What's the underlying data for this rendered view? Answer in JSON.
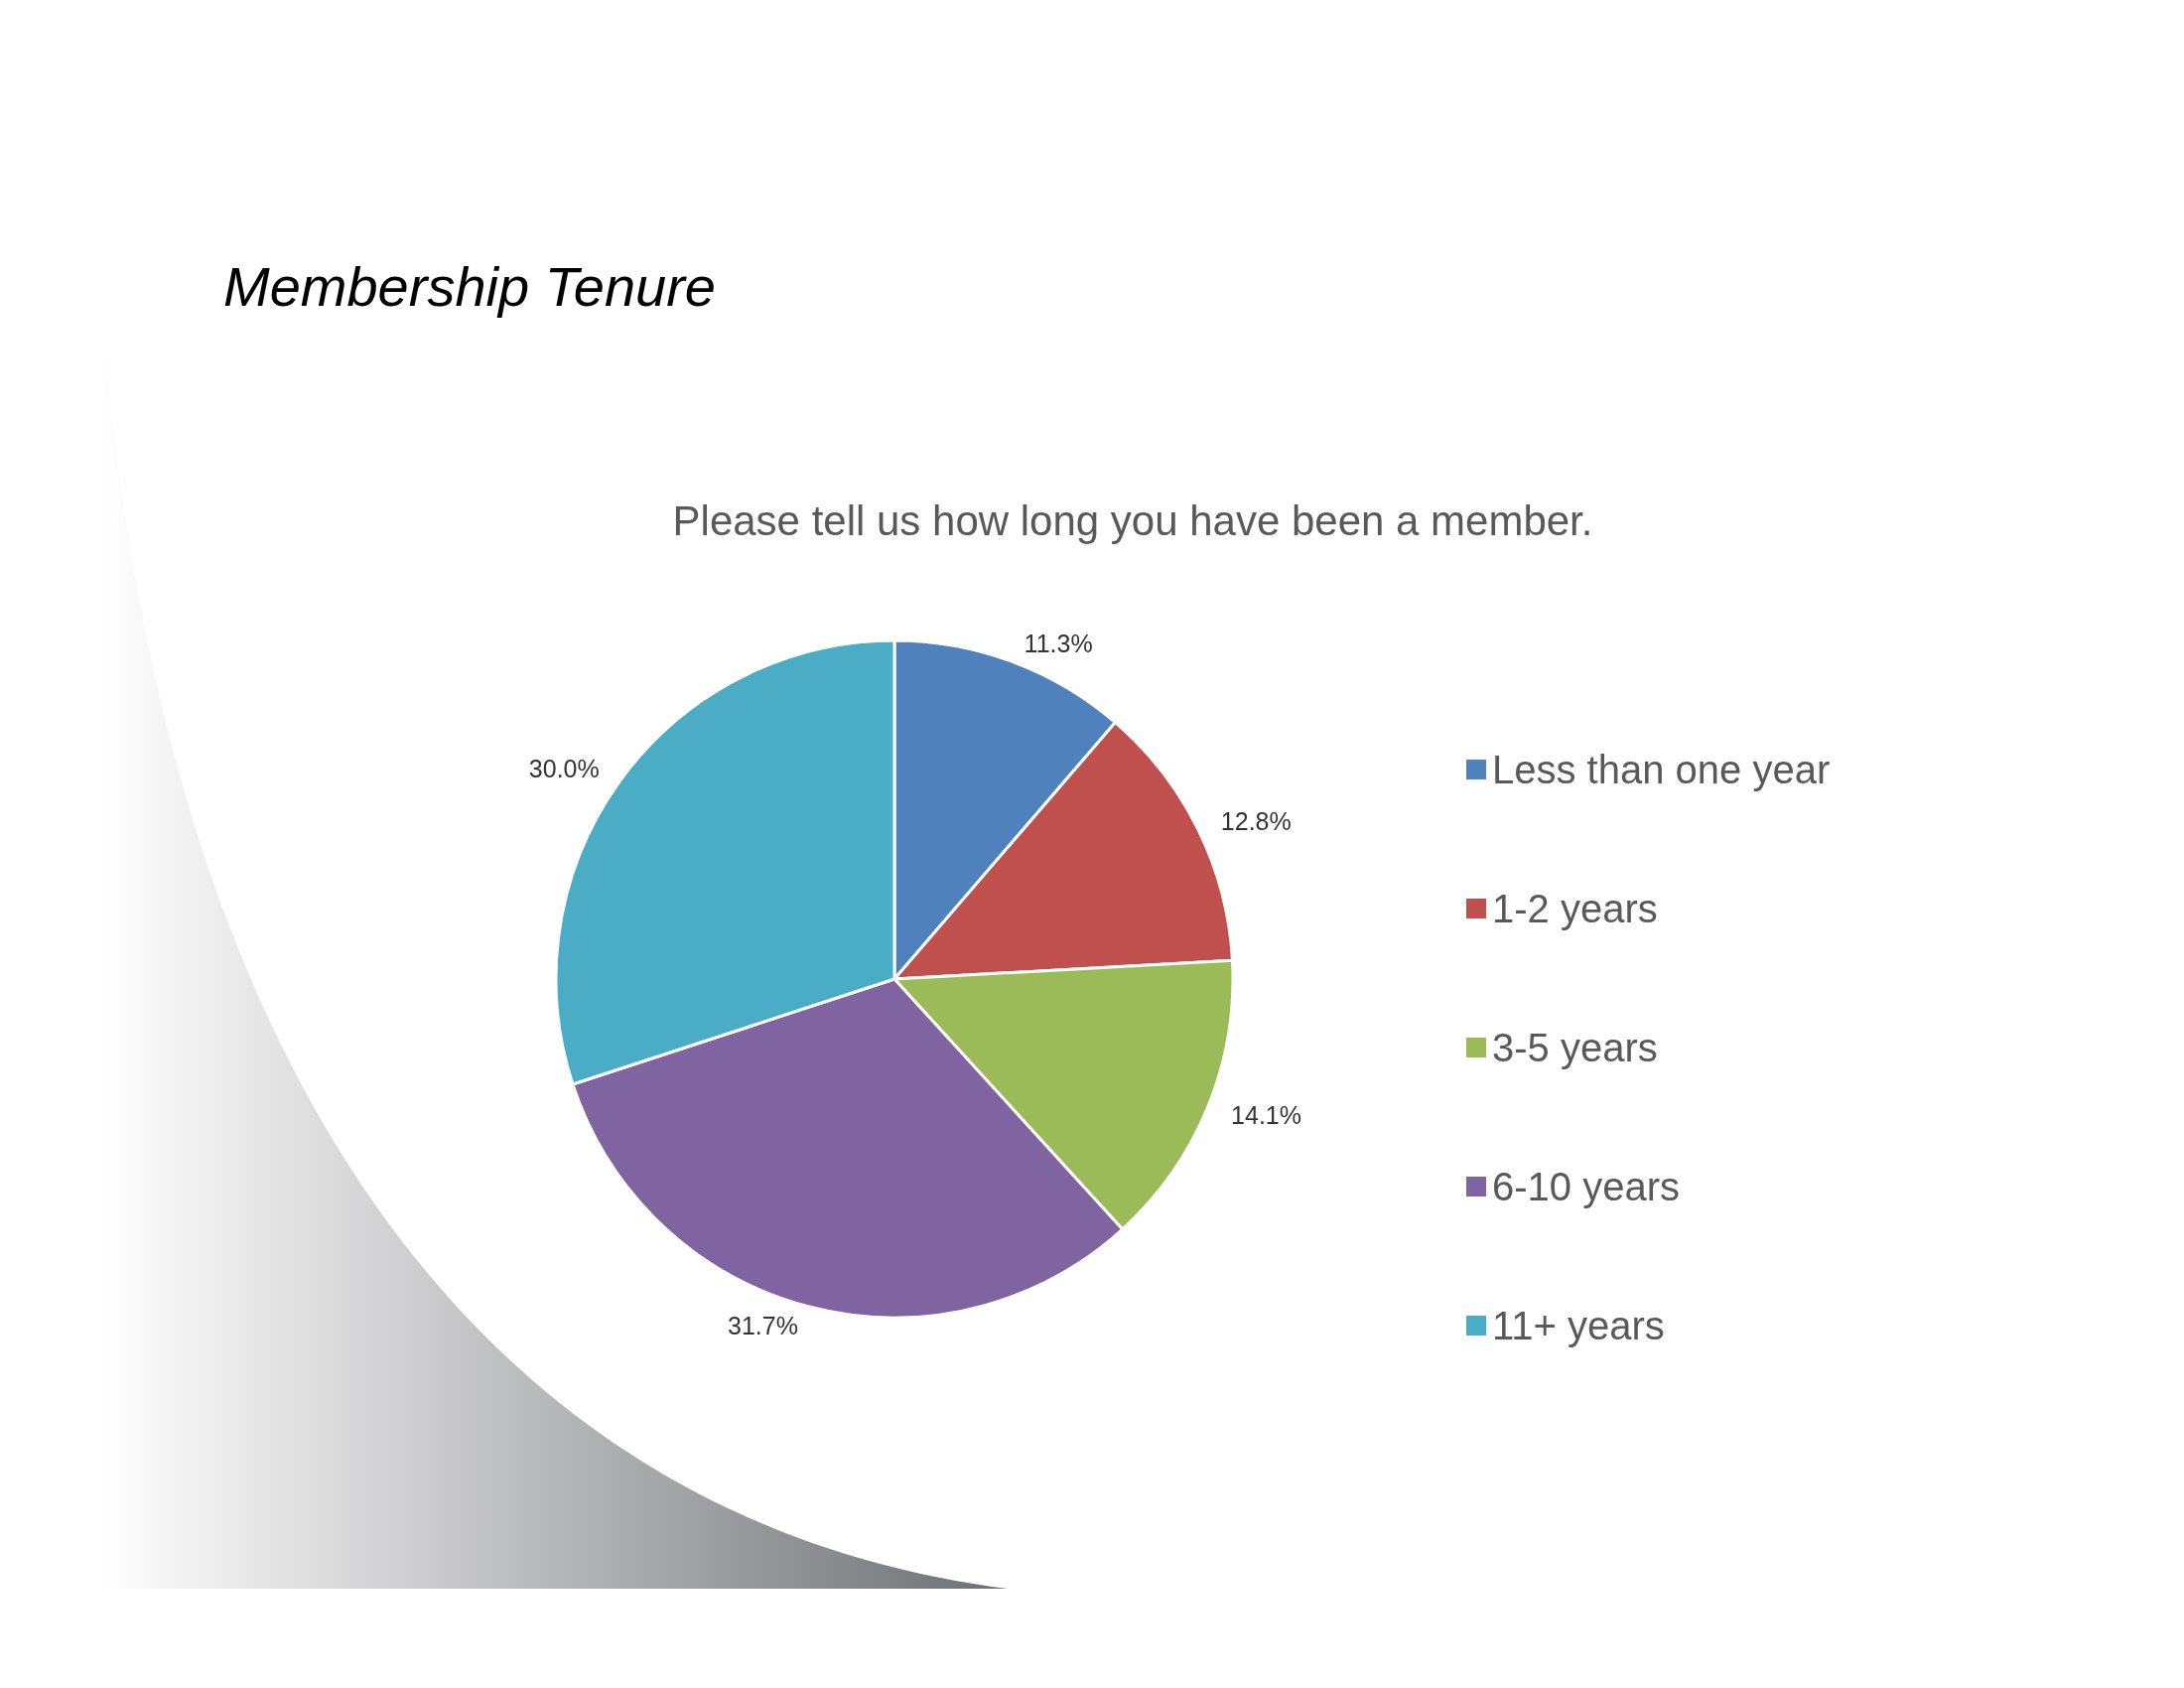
{
  "chart_data": {
    "type": "pie",
    "title": "Membership Tenure",
    "subtitle": "Please tell us how long you have been a member.",
    "categories": [
      "Less than one year",
      "1-2 years",
      "3-5 years",
      "6-10 years",
      "11+ years"
    ],
    "values": [
      11.3,
      12.8,
      14.1,
      31.7,
      30.0
    ],
    "colors": [
      "#4f81bd",
      "#c0504d",
      "#9bbb59",
      "#8064a2",
      "#4bacc6"
    ],
    "value_labels": [
      "11.3%",
      "12.8%",
      "14.1%",
      "31.7%",
      "30.0%"
    ],
    "legend": "right"
  }
}
